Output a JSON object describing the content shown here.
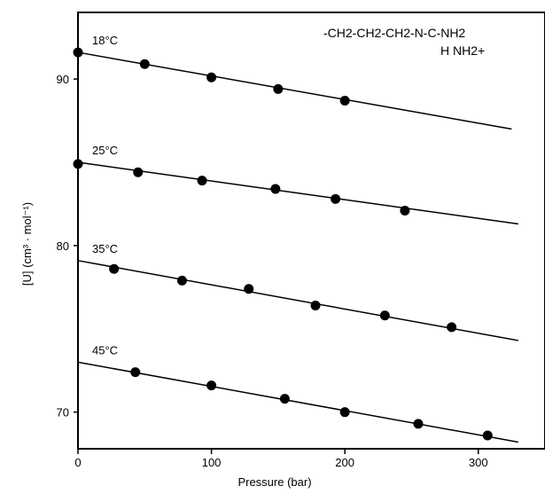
{
  "chart_data": {
    "type": "scatter",
    "xlabel": "Pressure (bar)",
    "ylabel": "[U] (cm³ · mol⁻¹)",
    "x_ticks": [
      0,
      100,
      200,
      300
    ],
    "y_ticks": [
      70,
      80,
      90
    ],
    "xlim": [
      0,
      350
    ],
    "ylim": [
      67.8,
      94
    ],
    "grid": false,
    "structure_formula": {
      "main": "-CH2-CH2-CH2-N-C-NH2",
      "sub": "H NH2+"
    },
    "series": [
      {
        "name": "18°C",
        "points": [
          [
            0,
            91.6
          ],
          [
            50,
            90.9
          ],
          [
            100,
            90.1
          ],
          [
            150,
            89.4
          ],
          [
            200,
            88.7
          ]
        ],
        "fit": [
          [
            0,
            91.6
          ],
          [
            325,
            87.0
          ]
        ]
      },
      {
        "name": "25°C",
        "points": [
          [
            0,
            84.9
          ],
          [
            45,
            84.4
          ],
          [
            93,
            83.9
          ],
          [
            148,
            83.4
          ],
          [
            193,
            82.8
          ],
          [
            245,
            82.1
          ]
        ],
        "fit": [
          [
            0,
            85.0
          ],
          [
            330,
            81.3
          ]
        ]
      },
      {
        "name": "35°C",
        "points": [
          [
            27,
            78.6
          ],
          [
            78,
            77.9
          ],
          [
            128,
            77.4
          ],
          [
            178,
            76.4
          ],
          [
            230,
            75.8
          ],
          [
            280,
            75.1
          ]
        ],
        "fit": [
          [
            0,
            79.1
          ],
          [
            330,
            74.3
          ]
        ]
      },
      {
        "name": "45°C",
        "points": [
          [
            43,
            72.4
          ],
          [
            100,
            71.6
          ],
          [
            155,
            70.8
          ],
          [
            200,
            70.0
          ],
          [
            255,
            69.3
          ],
          [
            307,
            68.6
          ]
        ],
        "fit": [
          [
            0,
            73.0
          ],
          [
            330,
            68.2
          ]
        ]
      }
    ]
  }
}
